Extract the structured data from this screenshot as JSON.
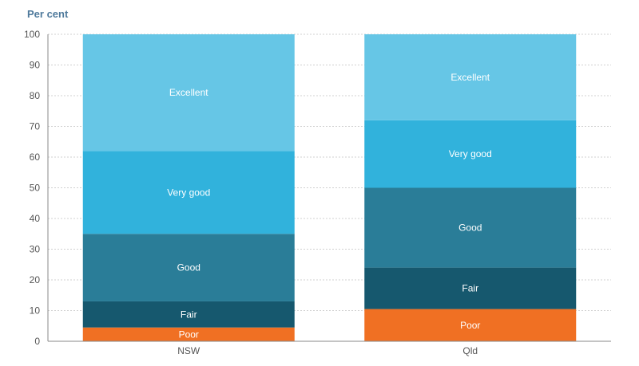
{
  "chart_data": {
    "type": "bar",
    "stacked": true,
    "ylabel": "Per cent",
    "xlabel": "",
    "ylim": [
      0,
      100
    ],
    "yticks": [
      0,
      10,
      20,
      30,
      40,
      50,
      60,
      70,
      80,
      90,
      100
    ],
    "categories": [
      "NSW",
      "Qld"
    ],
    "grid": true,
    "series": [
      {
        "name": "Poor",
        "values": [
          4.5,
          10.5
        ],
        "color": "#f07023"
      },
      {
        "name": "Fair",
        "values": [
          8.5,
          13.5
        ],
        "color": "#16586e"
      },
      {
        "name": "Good",
        "values": [
          22,
          26
        ],
        "color": "#2a7d98"
      },
      {
        "name": "Very good",
        "values": [
          27,
          22
        ],
        "color": "#31b2dc"
      },
      {
        "name": "Excellent",
        "values": [
          38,
          28
        ],
        "color": "#66c6e6"
      }
    ]
  }
}
